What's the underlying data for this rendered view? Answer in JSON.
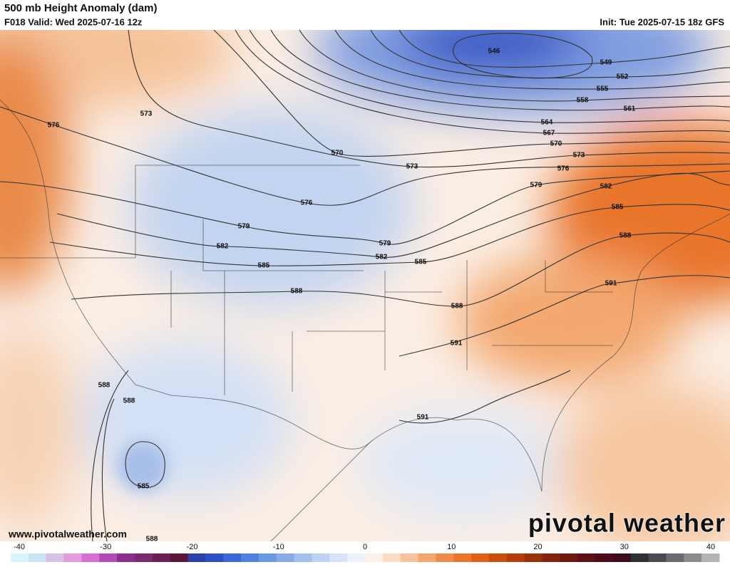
{
  "header": {
    "title": "500 mb Height Anomaly (dam)",
    "valid": "F018 Valid: Wed 2025-07-16 12z",
    "init": "Init: Tue 2025-07-15 18z GFS"
  },
  "contour_labels": [
    546,
    549,
    552,
    555,
    558,
    561,
    564,
    567,
    570,
    570,
    573,
    576,
    573,
    579,
    582,
    585,
    588,
    576,
    573,
    576,
    579,
    582,
    585,
    579,
    582,
    585,
    588,
    588,
    591,
    591,
    591,
    588,
    588,
    585,
    588
  ],
  "website": "www.pivotalweather.com",
  "logo": "pivotal weather",
  "colorbar": {
    "range": [
      -40,
      40
    ],
    "ticks": [
      -40,
      -30,
      -20,
      -10,
      0,
      10,
      20,
      30,
      40
    ],
    "colors": [
      "#d9f4fb",
      "#c6e4f3",
      "#d9c0e6",
      "#e59be0",
      "#d96ed6",
      "#b24ab8",
      "#8c2f8c",
      "#7a2a6e",
      "#6b1f55",
      "#5a1538",
      "#2d3fa8",
      "#2e4fc7",
      "#3a68d6",
      "#4f82de",
      "#6a98e4",
      "#86abe8",
      "#a3c0ee",
      "#bdd2f3",
      "#d6e3f8",
      "#eef3fb",
      "#fdf1e7",
      "#fbdcc4",
      "#f8c39b",
      "#f4a670",
      "#f08a48",
      "#ec7328",
      "#e05f14",
      "#cc4e0c",
      "#b43e0a",
      "#9a300a",
      "#85240c",
      "#70180f",
      "#5e1016",
      "#4e0b1c",
      "#3e0a20",
      "#2f2f35",
      "#4a4a50",
      "#6a6a70",
      "#8c8c90",
      "#b4b4b8"
    ]
  }
}
